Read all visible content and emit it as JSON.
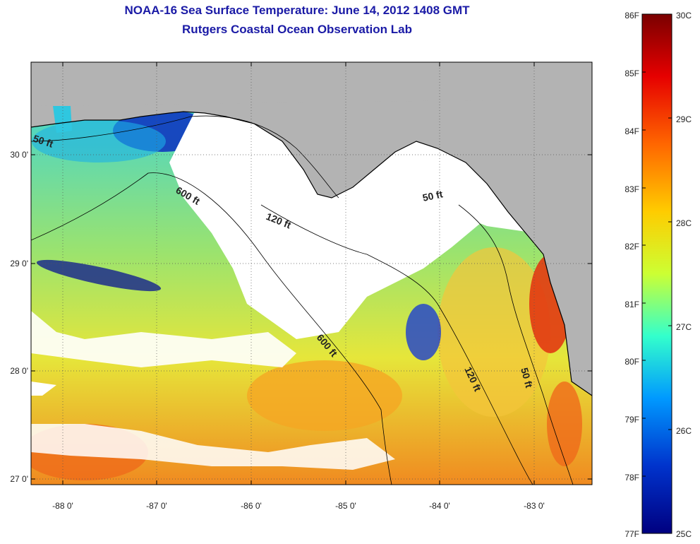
{
  "title": {
    "line1": "NOAA-16 Sea Surface Temperature:  June 14, 2012 1408 GMT",
    "line2": "Rutgers Coastal Ocean Observation Lab"
  },
  "map": {
    "lon_ticks": [
      "-88 0'",
      "-87 0'",
      "-86 0'",
      "-85 0'",
      "-84 0'",
      "-83 0'"
    ],
    "lat_ticks": [
      "30 0'",
      "29 0'",
      "28 0'",
      "27 0'"
    ],
    "contours": [
      {
        "label": "50 ft"
      },
      {
        "label": "600 ft"
      },
      {
        "label": "120 ft"
      },
      {
        "label": "50 ft"
      },
      {
        "label": "600 ft"
      },
      {
        "label": "120 ft"
      },
      {
        "label": "50 ft"
      }
    ],
    "colors": {
      "land": "#b3b3b3",
      "cloud": "#ffffff"
    }
  },
  "colorbar": {
    "f_labels": [
      "86F",
      "85F",
      "84F",
      "83F",
      "82F",
      "81F",
      "80F",
      "79F",
      "78F",
      "77F"
    ],
    "c_labels": [
      "30C",
      "29C",
      "28C",
      "27C",
      "26C",
      "25C"
    ],
    "gradient": [
      "#7a0000",
      "#e60000",
      "#ff6600",
      "#ffcc00",
      "#ccff33",
      "#33ffcc",
      "#0099ff",
      "#0033cc",
      "#000080"
    ]
  }
}
